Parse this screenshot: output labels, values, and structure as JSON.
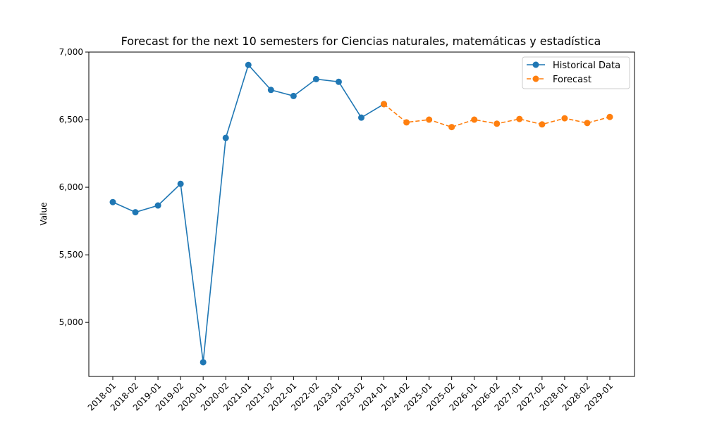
{
  "chart_data": {
    "type": "line",
    "title": "Forecast for the next 10 semesters for Ciencias naturales, matemáticas y estadística",
    "xlabel": "",
    "ylabel": "Value",
    "ylim": [
      4600,
      7000
    ],
    "yticks": [
      5000,
      5500,
      6000,
      6500,
      7000
    ],
    "ytick_labels": [
      "5,000",
      "5,500",
      "6,000",
      "6,500",
      "7,000"
    ],
    "categories": [
      "2018-01",
      "2018-02",
      "2019-01",
      "2019-02",
      "2020-01",
      "2020-02",
      "2021-01",
      "2021-02",
      "2022-01",
      "2022-02",
      "2023-01",
      "2023-02",
      "2024-01",
      "2024-02",
      "2025-01",
      "2025-02",
      "2026-01",
      "2026-02",
      "2027-01",
      "2027-02",
      "2028-01",
      "2028-02",
      "2029-01"
    ],
    "grid": false,
    "legend_position": "top-right",
    "series": [
      {
        "name": "Historical Data",
        "color": "#1f77b4",
        "style": "solid",
        "x": [
          "2018-01",
          "2018-02",
          "2019-01",
          "2019-02",
          "2020-01",
          "2020-02",
          "2021-01",
          "2021-02",
          "2022-01",
          "2022-02",
          "2023-01",
          "2023-02",
          "2024-01"
        ],
        "values": [
          5890,
          5815,
          5865,
          6025,
          4705,
          6365,
          6905,
          6720,
          6675,
          6800,
          6780,
          6515,
          6615
        ]
      },
      {
        "name": "Forecast",
        "color": "#ff7f0e",
        "style": "dashed",
        "x": [
          "2024-01",
          "2024-02",
          "2025-01",
          "2025-02",
          "2026-01",
          "2026-02",
          "2027-01",
          "2027-02",
          "2028-01",
          "2028-02",
          "2029-01"
        ],
        "values": [
          6615,
          6480,
          6500,
          6445,
          6500,
          6470,
          6505,
          6465,
          6510,
          6475,
          6520
        ]
      }
    ]
  }
}
